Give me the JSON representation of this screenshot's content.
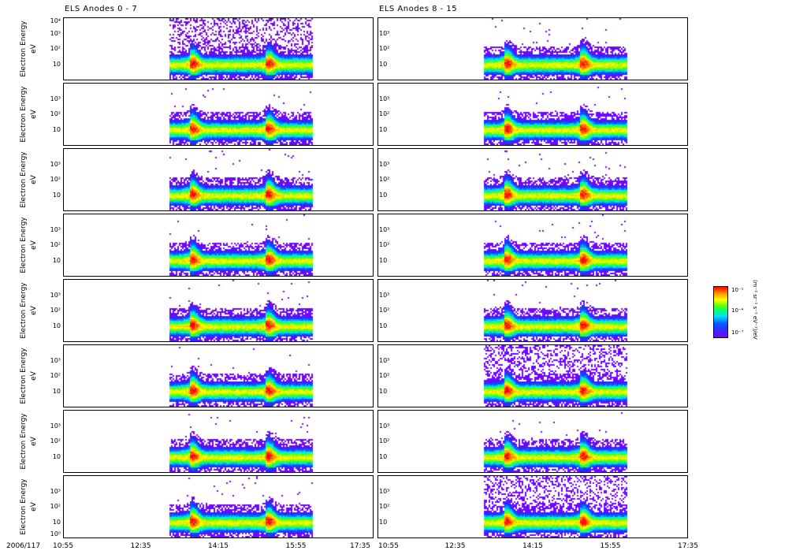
{
  "chart_data": {
    "type": "heatmap",
    "titles": [
      "ELS Anodes 0 - 7",
      "ELS Anodes 8 - 15"
    ],
    "ylabel": "Electron Energy",
    "yunit": "eV",
    "yscale": "log",
    "ylim": [
      1,
      10000
    ],
    "yticks": [
      "10",
      "10²",
      "10³"
    ],
    "ytick_top": "10⁴",
    "ytick_bottom": "10⁰",
    "date_label": "2006/117",
    "xticks": [
      "10:55",
      "12:35",
      "14:15",
      "15:55",
      "17:35"
    ],
    "xlim_minutes": [
      655,
      1055
    ],
    "data_interval_minutes": {
      "left": [
        792,
        975
      ],
      "right": [
        792,
        975
      ]
    },
    "features": {
      "peak_times_minutes": [
        820,
        918
      ],
      "dip_time_minutes": 875,
      "core_energy_log10": 1.0
    },
    "rows": 8,
    "noisy_panels": {
      "left": [
        0
      ],
      "right": [
        5,
        7
      ]
    },
    "colorbar": {
      "ticks": [
        "10⁻¹",
        "10⁻⁴",
        "10⁻⁷"
      ],
      "label": "(m⁻² sr⁻¹ s⁻¹ eV⁻¹)/eV"
    }
  }
}
